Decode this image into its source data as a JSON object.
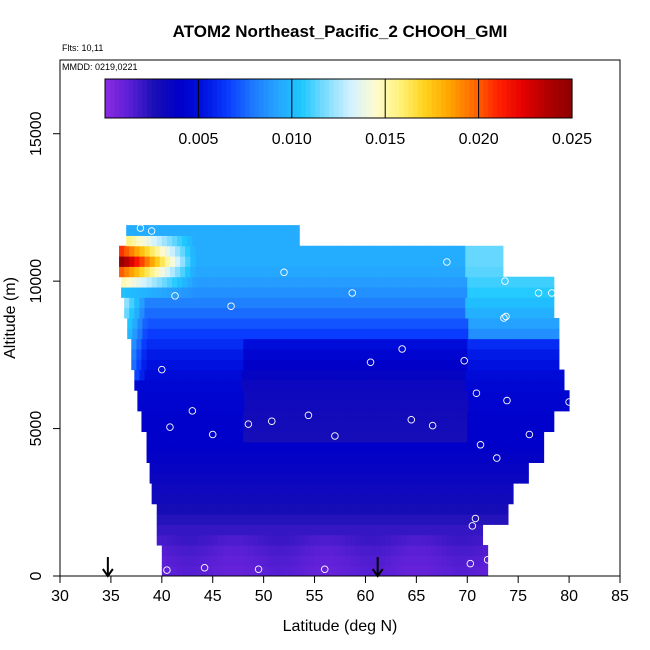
{
  "chart_data": {
    "type": "heatmap",
    "title": "ATOM2 Northeast_Pacific_2 CHOOH_GMI",
    "flights_note": "Flts: 10,11",
    "mmdd_note": "MMDD: 0219,0221",
    "xlabel": "Latitude (deg N)",
    "ylabel": "Altitude (m)",
    "xlim": [
      30,
      85
    ],
    "ylim": [
      0,
      17500
    ],
    "x_ticks": [
      "30",
      "35",
      "40",
      "45",
      "50",
      "55",
      "60",
      "65",
      "70",
      "75",
      "80",
      "85"
    ],
    "y_ticks": [
      "0",
      "5000",
      "10000",
      "15000"
    ],
    "colorbar": {
      "range": [
        0.0,
        0.025
      ],
      "ticks": [
        "0.005",
        "0.010",
        "0.015",
        "0.020",
        "0.025"
      ],
      "colors": [
        "#8b2be2",
        "#5a1fd6",
        "#1a0fb5",
        "#0000c8",
        "#0011e0",
        "#0a3cff",
        "#1e78ff",
        "#26a4ff",
        "#1ec8ff",
        "#7fdcff",
        "#d2f2ff",
        "#fffbd0",
        "#fff27a",
        "#ffd21e",
        "#ffa500",
        "#ff6a00",
        "#ff2200",
        "#e60000",
        "#b00000",
        "#8b0000"
      ]
    },
    "altitude_profile": [
      {
        "alt": 300,
        "value": 0.0012
      },
      {
        "alt": 900,
        "value": 0.0015
      },
      {
        "alt": 1700,
        "value": 0.0022
      },
      {
        "alt": 2500,
        "value": 0.003
      },
      {
        "alt": 3500,
        "value": 0.0035
      },
      {
        "alt": 4500,
        "value": 0.004
      },
      {
        "alt": 5500,
        "value": 0.0042
      },
      {
        "alt": 6500,
        "value": 0.0045
      },
      {
        "alt": 7500,
        "value": 0.0055
      },
      {
        "alt": 8500,
        "value": 0.007
      },
      {
        "alt": 9500,
        "value": 0.0085
      },
      {
        "alt": 10500,
        "value": 0.0095
      },
      {
        "alt": 11500,
        "value": 0.0095
      }
    ],
    "flight_track_points": [
      {
        "lat": 40.5,
        "alt": 200
      },
      {
        "lat": 44.2,
        "alt": 280
      },
      {
        "lat": 49.5,
        "alt": 230
      },
      {
        "lat": 56.0,
        "alt": 230
      },
      {
        "lat": 70.3,
        "alt": 420
      },
      {
        "lat": 72.0,
        "alt": 550
      },
      {
        "lat": 70.5,
        "alt": 1700
      },
      {
        "lat": 70.8,
        "alt": 1950
      },
      {
        "lat": 72.9,
        "alt": 4000
      },
      {
        "lat": 71.3,
        "alt": 4450
      },
      {
        "lat": 76.1,
        "alt": 4800
      },
      {
        "lat": 40.8,
        "alt": 5050
      },
      {
        "lat": 45.0,
        "alt": 4800
      },
      {
        "lat": 48.5,
        "alt": 5150
      },
      {
        "lat": 50.8,
        "alt": 5250
      },
      {
        "lat": 57.0,
        "alt": 4750
      },
      {
        "lat": 64.5,
        "alt": 5300
      },
      {
        "lat": 66.6,
        "alt": 5100
      },
      {
        "lat": 43.0,
        "alt": 5600
      },
      {
        "lat": 54.4,
        "alt": 5450
      },
      {
        "lat": 73.9,
        "alt": 5950
      },
      {
        "lat": 80.0,
        "alt": 5900
      },
      {
        "lat": 70.9,
        "alt": 6200
      },
      {
        "lat": 40.0,
        "alt": 7000
      },
      {
        "lat": 60.5,
        "alt": 7250
      },
      {
        "lat": 69.7,
        "alt": 7300
      },
      {
        "lat": 63.6,
        "alt": 7700
      },
      {
        "lat": 73.6,
        "alt": 8750
      },
      {
        "lat": 73.8,
        "alt": 8800
      },
      {
        "lat": 46.8,
        "alt": 9150
      },
      {
        "lat": 41.3,
        "alt": 9500
      },
      {
        "lat": 58.7,
        "alt": 9600
      },
      {
        "lat": 77.0,
        "alt": 9600
      },
      {
        "lat": 78.3,
        "alt": 9600
      },
      {
        "lat": 73.7,
        "alt": 10000
      },
      {
        "lat": 52.0,
        "alt": 10300
      },
      {
        "lat": 68.0,
        "alt": 10650
      },
      {
        "lat": 37.9,
        "alt": 11800
      },
      {
        "lat": 39.0,
        "alt": 11700
      },
      {
        "lat": 35.3,
        "alt": 10750
      }
    ],
    "arrow_markers_lat": [
      34.7,
      61.2
    ]
  }
}
